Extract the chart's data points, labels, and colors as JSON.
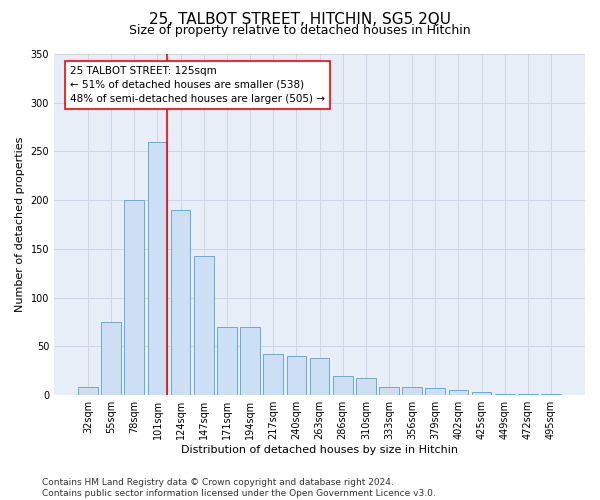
{
  "title": "25, TALBOT STREET, HITCHIN, SG5 2QU",
  "subtitle": "Size of property relative to detached houses in Hitchin",
  "xlabel": "Distribution of detached houses by size in Hitchin",
  "ylabel": "Number of detached properties",
  "categories": [
    "32sqm",
    "55sqm",
    "78sqm",
    "101sqm",
    "124sqm",
    "147sqm",
    "171sqm",
    "194sqm",
    "217sqm",
    "240sqm",
    "263sqm",
    "286sqm",
    "310sqm",
    "333sqm",
    "356sqm",
    "379sqm",
    "402sqm",
    "425sqm",
    "449sqm",
    "472sqm",
    "495sqm"
  ],
  "values": [
    8,
    75,
    200,
    260,
    190,
    143,
    70,
    70,
    42,
    40,
    38,
    20,
    18,
    8,
    8,
    7,
    5,
    3,
    1,
    1,
    1
  ],
  "bar_color": "#ccdff5",
  "bar_edgecolor": "#6aaad4",
  "grid_color": "#ccd6e8",
  "background_color": "#e8eef8",
  "annotation_box_text": "25 TALBOT STREET: 125sqm\n← 51% of detached houses are smaller (538)\n48% of semi-detached houses are larger (505) →",
  "redline_x": 3.5,
  "ylim": [
    0,
    350
  ],
  "yticks": [
    0,
    50,
    100,
    150,
    200,
    250,
    300,
    350
  ],
  "footnote": "Contains HM Land Registry data © Crown copyright and database right 2024.\nContains public sector information licensed under the Open Government Licence v3.0.",
  "title_fontsize": 11,
  "subtitle_fontsize": 9,
  "ylabel_fontsize": 8,
  "xlabel_fontsize": 8,
  "tick_fontsize": 7,
  "annot_fontsize": 7.5,
  "footnote_fontsize": 6.5
}
